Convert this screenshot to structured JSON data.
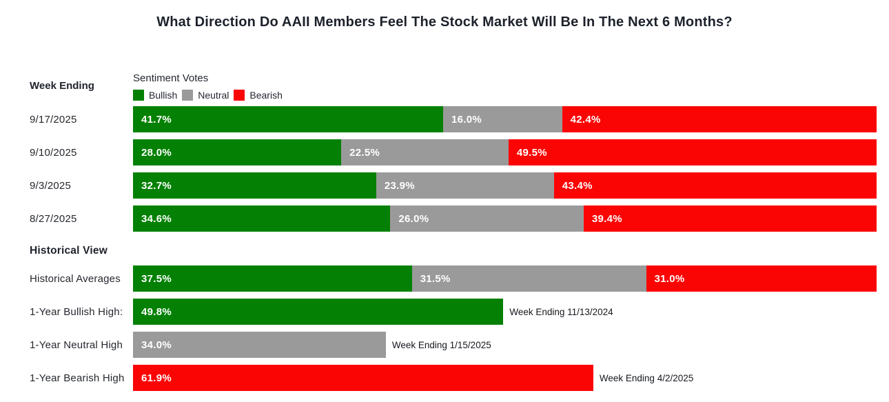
{
  "title": "What Direction Do AAII Members Feel The Stock Market Will Be In The Next 6 Months?",
  "left_header": "Week Ending",
  "historical_header": "Historical View",
  "legend": {
    "title": "Sentiment Votes",
    "items": [
      {
        "label": "Bullish",
        "series": "bullish"
      },
      {
        "label": "Neutral",
        "series": "neutral"
      },
      {
        "label": "Bearish",
        "series": "bearish"
      }
    ]
  },
  "colors": {
    "bullish": "#048104",
    "neutral": "#9A9A9A",
    "bearish": "#FB0404",
    "title_text": "#1C212B",
    "background": "#FFFFFF"
  },
  "chart_data": {
    "type": "bar",
    "orientation": "horizontal",
    "stacked": true,
    "unit": "percent",
    "axis_range": [
      0,
      100
    ],
    "grid": false,
    "series_names": [
      "Bullish",
      "Neutral",
      "Bearish"
    ],
    "weekly": [
      {
        "week_ending": "9/17/2025",
        "bullish": 41.7,
        "neutral": 16.0,
        "bearish": 42.4
      },
      {
        "week_ending": "9/10/2025",
        "bullish": 28.0,
        "neutral": 22.5,
        "bearish": 49.5
      },
      {
        "week_ending": "9/3/2025",
        "bullish": 32.7,
        "neutral": 23.9,
        "bearish": 43.4
      },
      {
        "week_ending": "8/27/2025",
        "bullish": 34.6,
        "neutral": 26.0,
        "bearish": 39.4
      }
    ],
    "historical_averages": {
      "label": "Historical Averages",
      "bullish": 37.5,
      "neutral": 31.5,
      "bearish": 31.0
    },
    "one_year_extremes": [
      {
        "label": "1-Year Bullish High:",
        "series": "bullish",
        "value": 49.8,
        "annotation": "Week Ending 11/13/2024"
      },
      {
        "label": "1-Year Neutral High",
        "series": "neutral",
        "value": 34.0,
        "annotation": "Week Ending 1/15/2025"
      },
      {
        "label": "1-Year Bearish High",
        "series": "bearish",
        "value": 61.9,
        "annotation": "Week Ending 4/2/2025"
      }
    ]
  }
}
